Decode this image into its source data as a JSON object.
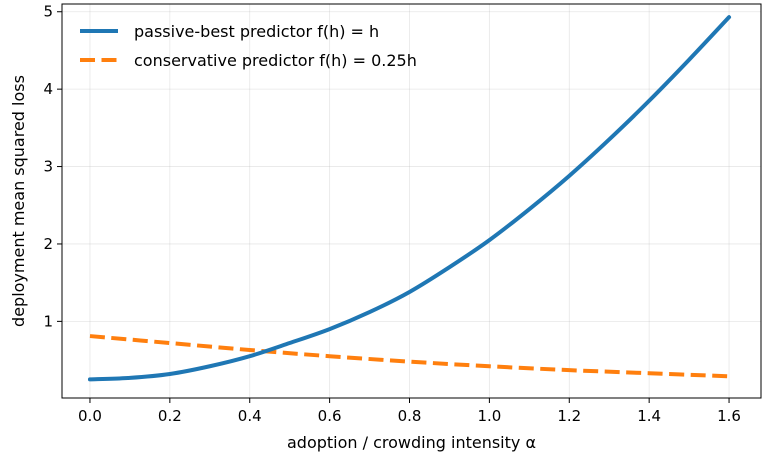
{
  "chart_data": {
    "type": "line",
    "xlabel": "adoption / crowding intensity α",
    "ylabel": "deployment mean squared loss",
    "xlim": [
      -0.07,
      1.68
    ],
    "ylim": [
      0.01,
      5.1
    ],
    "x_ticks": [
      0.0,
      0.2,
      0.4,
      0.6,
      0.8,
      1.0,
      1.2,
      1.4,
      1.6
    ],
    "x_tick_labels": [
      "0.0",
      "0.2",
      "0.4",
      "0.6",
      "0.8",
      "1.0",
      "1.2",
      "1.4",
      "1.6"
    ],
    "y_ticks": [
      1,
      2,
      3,
      4,
      5
    ],
    "y_tick_labels": [
      "1",
      "2",
      "3",
      "4",
      "5"
    ],
    "grid": true,
    "legend_position": "top-left",
    "series": [
      {
        "name": "passive-best predictor f(h) = h",
        "color": "#1f77b4",
        "style": "solid",
        "x": [
          0.0,
          0.1,
          0.2,
          0.3,
          0.4,
          0.5,
          0.6,
          0.7,
          0.8,
          0.9,
          1.0,
          1.1,
          1.2,
          1.3,
          1.4,
          1.5,
          1.6
        ],
        "y": [
          0.25,
          0.27,
          0.32,
          0.42,
          0.55,
          0.72,
          0.9,
          1.12,
          1.38,
          1.7,
          2.05,
          2.45,
          2.88,
          3.35,
          3.85,
          4.38,
          4.93
        ]
      },
      {
        "name": "conservative predictor f(h) = 0.25h",
        "color": "#ff7f0e",
        "style": "dashed",
        "x": [
          0.0,
          0.2,
          0.4,
          0.6,
          0.8,
          1.0,
          1.2,
          1.4,
          1.6
        ],
        "y": [
          0.81,
          0.72,
          0.63,
          0.55,
          0.48,
          0.42,
          0.37,
          0.33,
          0.29
        ]
      }
    ]
  }
}
